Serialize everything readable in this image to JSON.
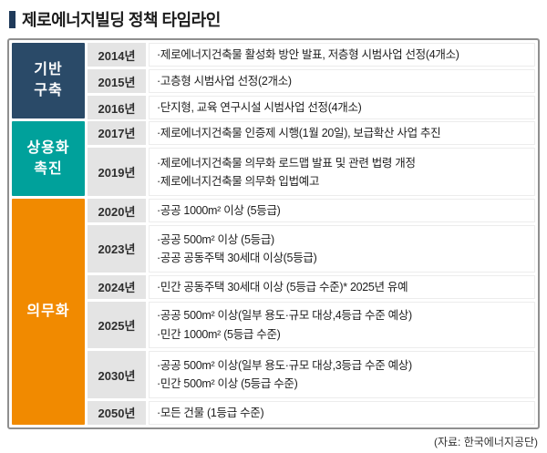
{
  "title": "제로에너지빌딩 정책 타임라인",
  "source": "(자료: 한국에너지공단)",
  "colors": {
    "title_bullet": "#1f3a5a",
    "table_border": "#8f8f8f",
    "year_cell_bg": "#e4e4e4",
    "phase_foundation": "#2a4a68",
    "phase_commercialization": "#00a19b",
    "phase_mandatory": "#f18a00"
  },
  "phases": [
    {
      "label": "기반 구축",
      "label_lines": [
        "기반",
        "구축"
      ],
      "color": "#2a4a68",
      "rows": [
        {
          "year": "2014년",
          "items": [
            "·제로에너지건축물 활성화 방안 발표, 저층형 시범사업 선정(4개소)"
          ]
        },
        {
          "year": "2015년",
          "items": [
            "·고층형 시범사업 선정(2개소)"
          ]
        },
        {
          "year": "2016년",
          "items": [
            "·단지형, 교육 연구시설 시범사업 선정(4개소)"
          ]
        }
      ]
    },
    {
      "label": "상용화 촉진",
      "label_lines": [
        "상용화",
        "촉진"
      ],
      "color": "#00a19b",
      "rows": [
        {
          "year": "2017년",
          "items": [
            "·제로에너지건축물 인증제 시행(1월 20일), 보급확산 사업 추진"
          ]
        },
        {
          "year": "2019년",
          "items": [
            "·제로에너지건축물 의무화 로드맵 발표 및 관련 법령 개정",
            "·제로에너지건축물 의무화 입법예고"
          ]
        }
      ]
    },
    {
      "label": "의무화",
      "label_lines": [
        "의무화"
      ],
      "color": "#f18a00",
      "rows": [
        {
          "year": "2020년",
          "items": [
            "·공공 1000m² 이상 (5등급)"
          ]
        },
        {
          "year": "2023년",
          "items": [
            "·공공 500m² 이상 (5등급)",
            "·공공 공동주택 30세대 이상(5등급)"
          ]
        },
        {
          "year": "2024년",
          "items": [
            "·민간 공동주택 30세대 이상 (5등급 수준)* 2025년 유예"
          ]
        },
        {
          "year": "2025년",
          "items": [
            "·공공 500m² 이상(일부 용도·규모 대상,4등급 수준 예상)",
            "·민간 1000m² (5등급 수준)"
          ]
        },
        {
          "year": "2030년",
          "items": [
            "·공공 500m² 이상(일부 용도·규모 대상,3등급 수준 예상)",
            "·민간 500m² 이상 (5등급 수준)"
          ]
        },
        {
          "year": "2050년",
          "items": [
            "·모든 건물 (1등급 수준)"
          ]
        }
      ]
    }
  ]
}
